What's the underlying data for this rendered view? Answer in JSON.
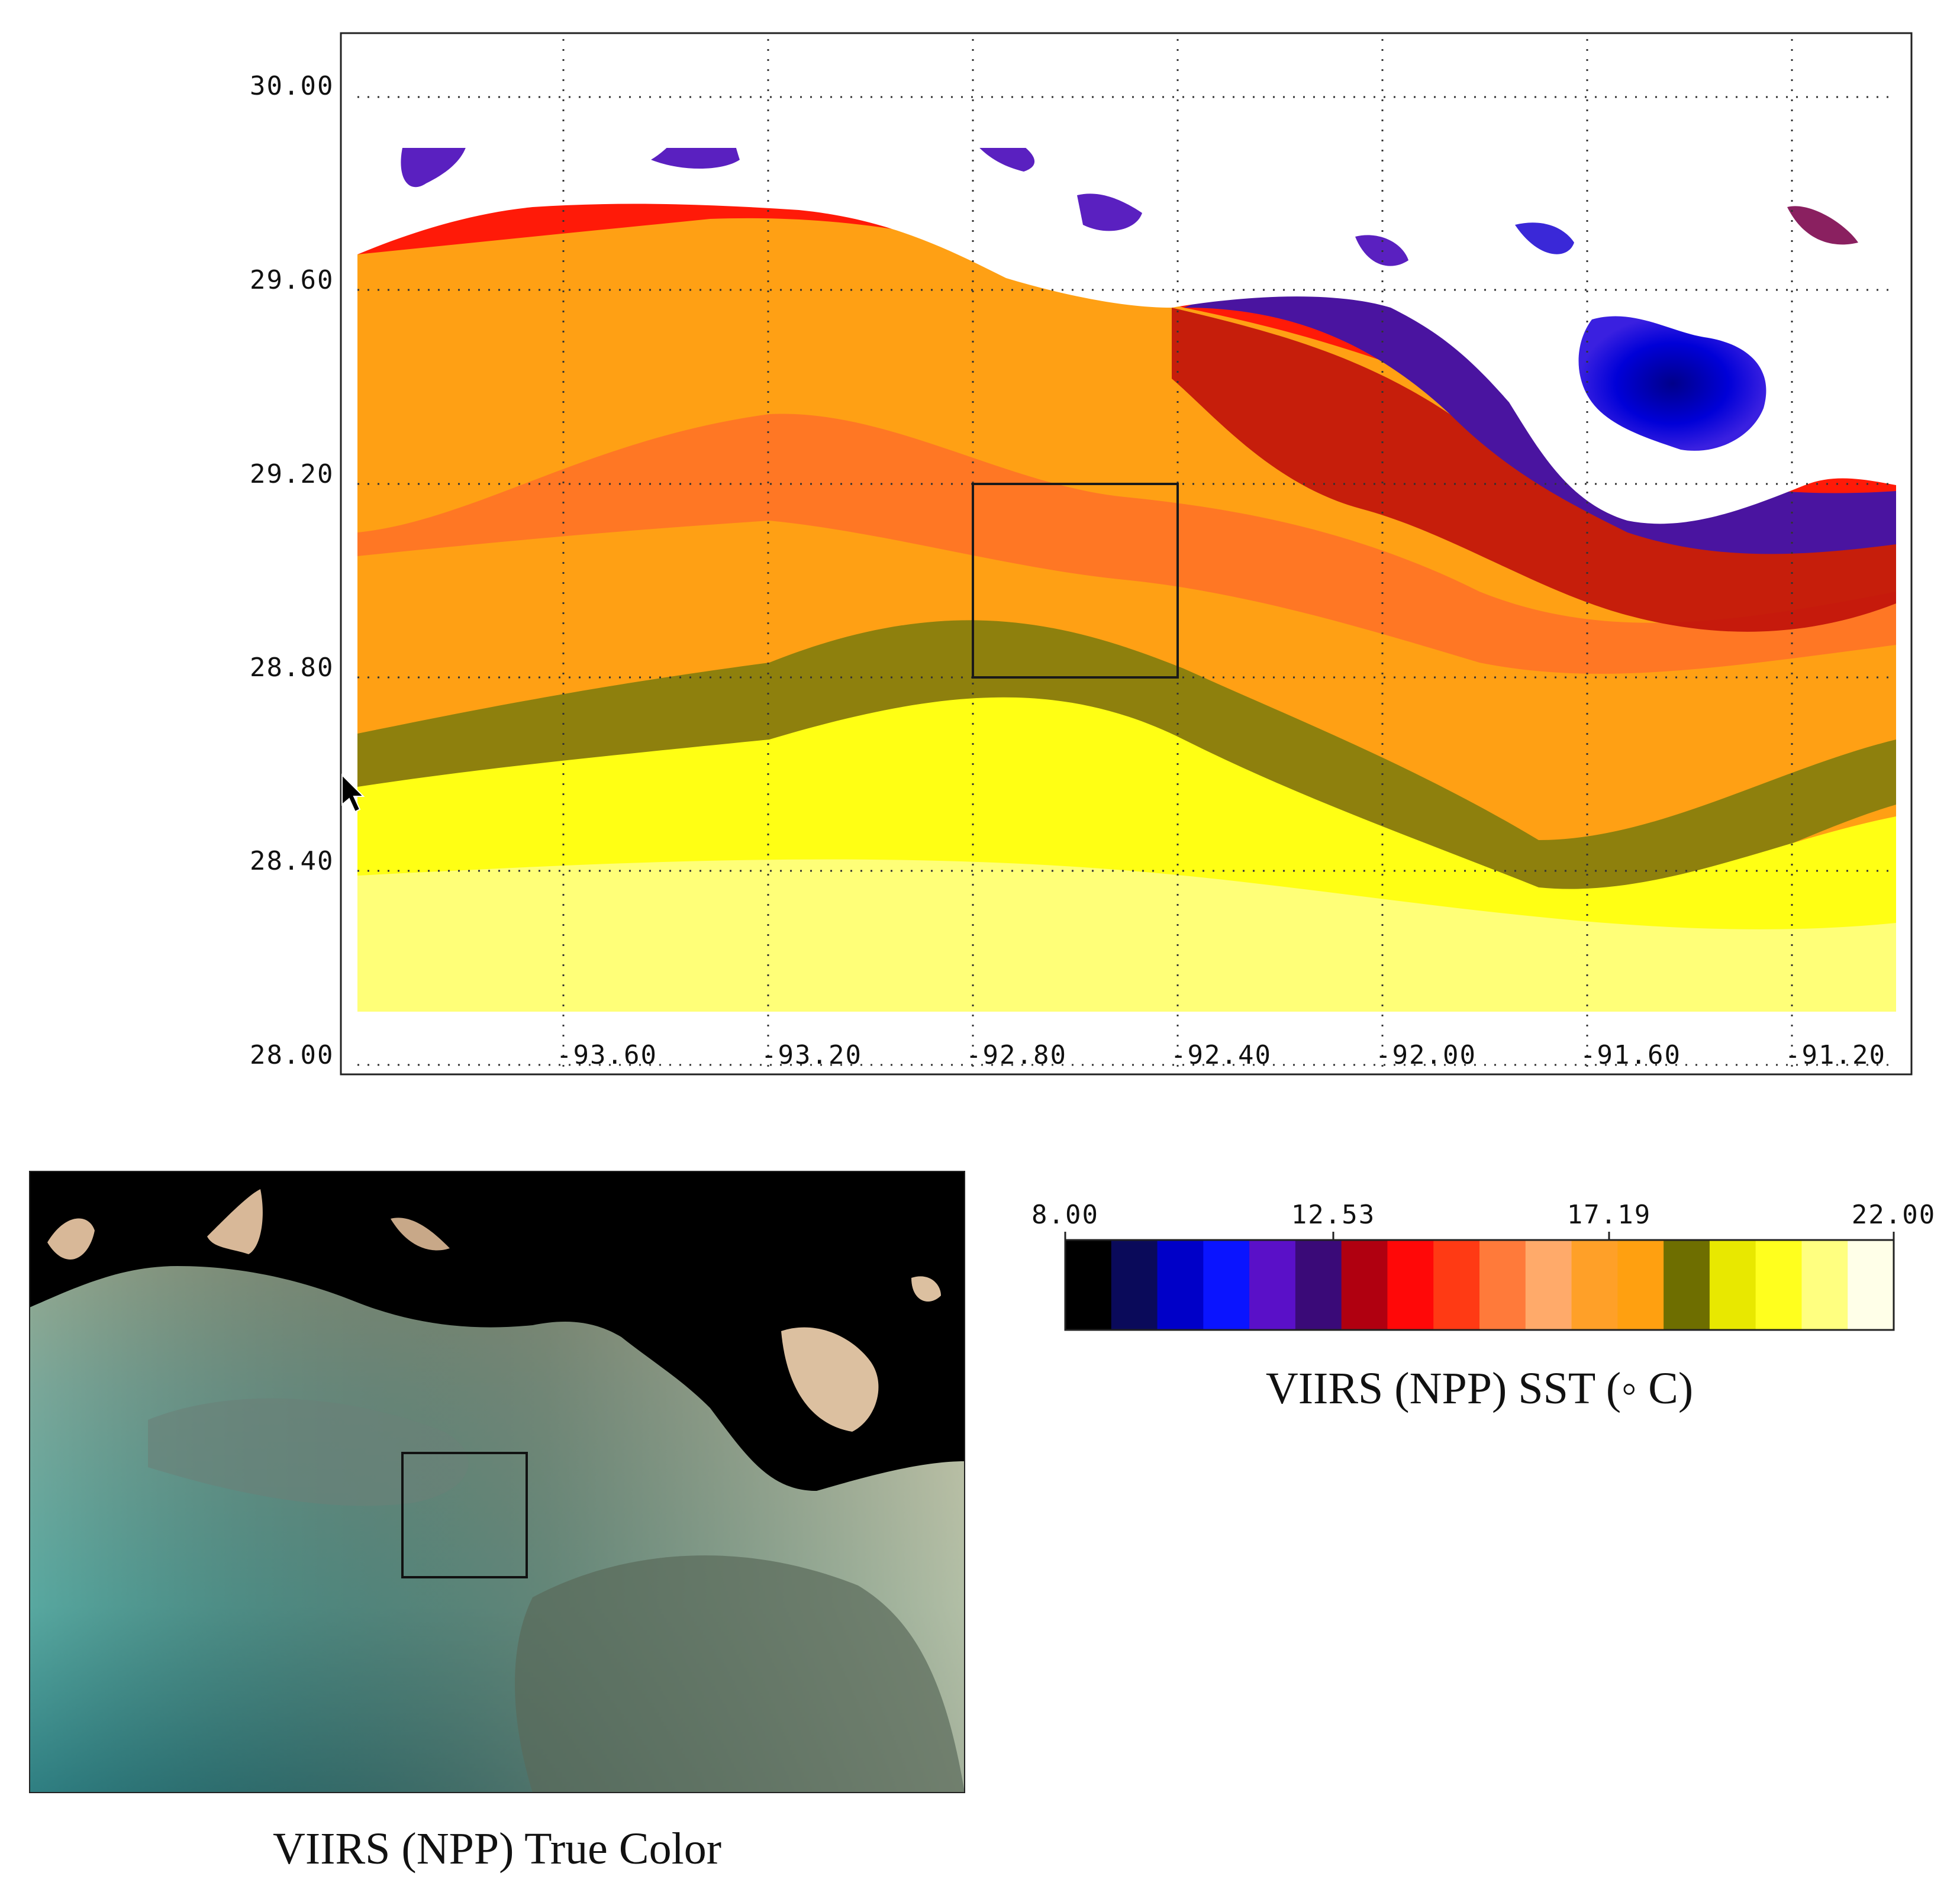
{
  "sst_map": {
    "y_ticks": [
      "30.00",
      "29.60",
      "29.20",
      "28.80",
      "28.40",
      "28.00"
    ],
    "x_ticks": [
      "-93.60",
      "-93.20",
      "-92.80",
      "-92.40",
      "-92.00",
      "-91.60",
      "-91.20"
    ],
    "lat_range": [
      28.0,
      30.0
    ],
    "lon_range": [
      -93.98,
      -91.2
    ],
    "grid": "dotted",
    "box": {
      "lon": [
        -92.8,
        -92.4
      ],
      "lat": [
        28.8,
        29.2
      ]
    },
    "colors": {
      "land_mask": "#ffffff",
      "grid": "#333333",
      "frame": "#222222"
    }
  },
  "colorbar": {
    "tick_labels": [
      "8.00",
      "12.53",
      "17.19",
      "22.00"
    ],
    "tick_values": [
      8.0,
      12.53,
      17.19,
      22.0
    ],
    "range": [
      8.0,
      22.0
    ],
    "label": "VIIRS (NPP) SST (◦ C)",
    "colors": [
      "#000000",
      "#0a0a5a",
      "#0000c8",
      "#0a14ff",
      "#5a10c8",
      "#3a0a78",
      "#b00010",
      "#ff0808",
      "#ff3a14",
      "#ff7a3a",
      "#ffaa6a",
      "#ffa028",
      "#ffa010",
      "#6e6e00",
      "#e8e800",
      "#ffff1e",
      "#ffff80",
      "#ffffe8"
    ]
  },
  "true_color": {
    "caption": "VIIRS (NPP) True Color",
    "colors": {
      "land": "#000000",
      "water_deep": "#3c8c8a",
      "water_turbid": "#b8b090"
    }
  }
}
